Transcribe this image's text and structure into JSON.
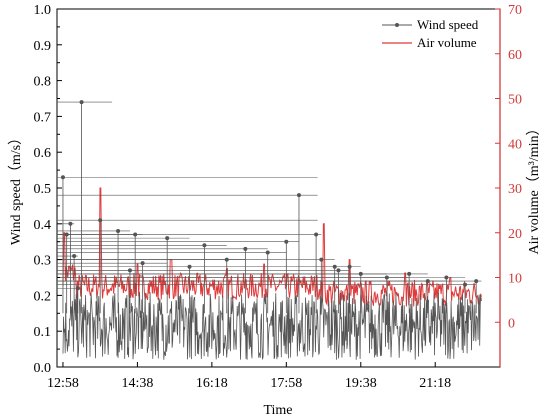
{
  "chart_data": {
    "type": "line",
    "xlabel": "Time",
    "ylabel_left": "Wind speed（m/s）",
    "ylabel_right": "Air volume（m³/min）",
    "x_ticks": [
      "12:58",
      "14:38",
      "16:18",
      "17:58",
      "19:38",
      "21:18"
    ],
    "y_left_ticks": [
      "0.0",
      "0.1",
      "0.2",
      "0.3",
      "0.4",
      "0.5",
      "0.6",
      "0.7",
      "0.8",
      "0.9",
      "1.0"
    ],
    "y_right_ticks": [
      "0",
      "10",
      "20",
      "30",
      "40",
      "50",
      "60",
      "70"
    ],
    "ylim_left": [
      0,
      1.0
    ],
    "ylim_right": [
      -10,
      70
    ],
    "legend_position": "top-right",
    "grid": false,
    "series": [
      {
        "name": "Wind speed",
        "axis": "left",
        "color": "#555555",
        "marker": "circle",
        "baseline": "0.05–0.20 m/s fluctuating",
        "x": [
          "12:58",
          "13:03",
          "13:08",
          "13:13",
          "13:18",
          "13:23",
          "13:48",
          "14:12",
          "14:28",
          "14:35",
          "14:45",
          "15:18",
          "15:48",
          "16:08",
          "16:38",
          "17:03",
          "17:33",
          "17:58",
          "18:15",
          "18:38",
          "18:45",
          "19:03",
          "19:08",
          "19:23",
          "19:38",
          "20:13",
          "20:43",
          "21:08",
          "21:33",
          "21:58",
          "22:13"
        ],
        "values": [
          0.53,
          0.37,
          0.4,
          0.31,
          0.22,
          0.74,
          0.41,
          0.38,
          0.27,
          0.37,
          0.29,
          0.36,
          0.28,
          0.34,
          0.3,
          0.33,
          0.32,
          0.35,
          0.48,
          0.37,
          0.3,
          0.28,
          0.27,
          0.28,
          0.26,
          0.25,
          0.26,
          0.24,
          0.25,
          0.23,
          0.24
        ]
      },
      {
        "name": "Air volume",
        "axis": "right",
        "color": "#e03a3a",
        "baseline": "approx. 6–10 m³/min with spikes",
        "spikes_x": [
          "13:00",
          "13:48",
          "14:38",
          "15:23",
          "16:38",
          "17:28",
          "18:48",
          "19:23",
          "20:38",
          "21:38"
        ],
        "spikes_values": [
          20,
          30,
          13,
          14,
          12,
          13,
          22,
          14,
          11,
          10
        ]
      }
    ],
    "annotations": []
  }
}
